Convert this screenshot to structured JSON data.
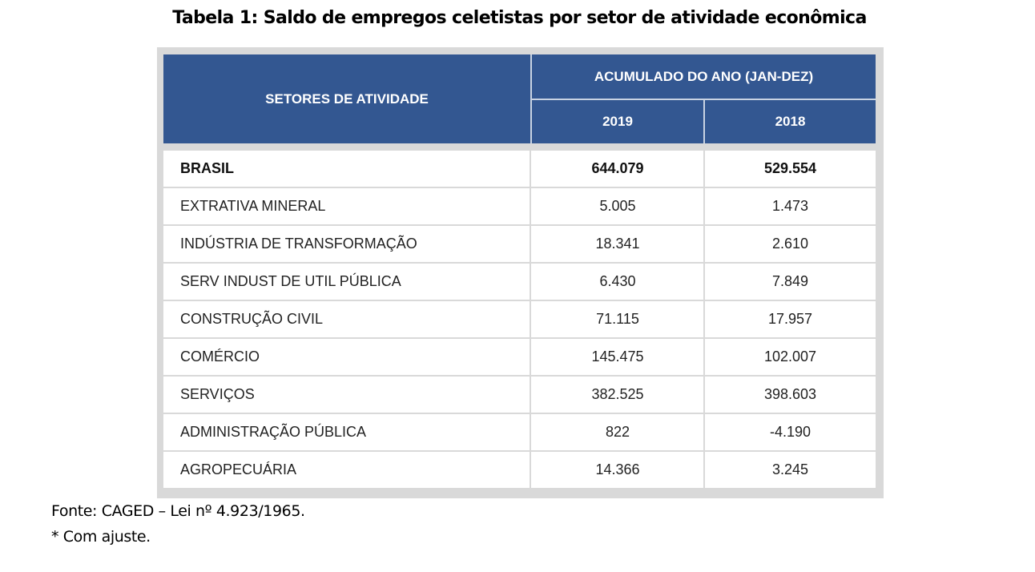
{
  "title": "Tabela 1: Saldo de empregos celetistas por setor de atividade econômica",
  "table": {
    "header": {
      "sector_col": "SETORES DE ATIVIDADE",
      "group_label": "ACUMULADO DO ANO (JAN-DEZ)",
      "years": [
        "2019",
        "2018"
      ]
    },
    "rows": [
      {
        "sector": "BRASIL",
        "y2019": "644.079",
        "y2018": "529.554",
        "bold": true
      },
      {
        "sector": "EXTRATIVA MINERAL",
        "y2019": "5.005",
        "y2018": "1.473"
      },
      {
        "sector": "INDÚSTRIA DE TRANSFORMAÇÃO",
        "y2019": "18.341",
        "y2018": "2.610"
      },
      {
        "sector": "SERV INDUST DE UTIL PÚBLICA",
        "y2019": "6.430",
        "y2018": "7.849"
      },
      {
        "sector": "CONSTRUÇÃO CIVIL",
        "y2019": "71.115",
        "y2018": "17.957"
      },
      {
        "sector": "COMÉRCIO",
        "y2019": "145.475",
        "y2018": "102.007"
      },
      {
        "sector": "SERVIÇOS",
        "y2019": "382.525",
        "y2018": "398.603"
      },
      {
        "sector": "ADMINISTRAÇÃO PÚBLICA",
        "y2019": "822",
        "y2018": "-4.190"
      },
      {
        "sector": "AGROPECUÁRIA",
        "y2019": "14.366",
        "y2018": "3.245"
      }
    ]
  },
  "footer": {
    "source": "Fonte: CAGED – Lei nº 4.923/1965.",
    "note": "* Com ajuste."
  },
  "colors": {
    "header_bg": "#335791",
    "frame": "#d9d9d9"
  }
}
